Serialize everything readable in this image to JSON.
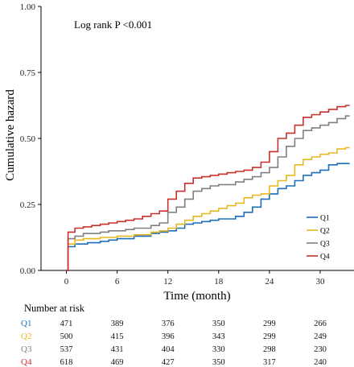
{
  "chart_data": {
    "type": "line",
    "step": true,
    "title": "",
    "xlabel": "Time (month)",
    "ylabel": "Cumulative hazard",
    "annotation": "Log rank P <0.001",
    "xlim": [
      -3,
      34
    ],
    "ylim": [
      0,
      1
    ],
    "xticks": [
      0,
      6,
      12,
      18,
      24,
      30
    ],
    "yticks": [
      "0.00",
      "0.25",
      "0.50",
      "0.75",
      "1.00"
    ],
    "ytick_values": [
      0,
      0.25,
      0.5,
      0.75,
      1.0
    ],
    "grid": false,
    "legend_position": "bottom-right",
    "series": [
      {
        "name": "Q1",
        "color": "#1f6fb8",
        "points": [
          [
            0,
            0
          ],
          [
            0.2,
            0.09
          ],
          [
            1,
            0.1
          ],
          [
            2.5,
            0.105
          ],
          [
            4,
            0.11
          ],
          [
            5,
            0.115
          ],
          [
            6,
            0.12
          ],
          [
            8,
            0.13
          ],
          [
            10,
            0.14
          ],
          [
            11,
            0.145
          ],
          [
            12,
            0.15
          ],
          [
            13,
            0.16
          ],
          [
            14,
            0.175
          ],
          [
            15,
            0.18
          ],
          [
            16,
            0.185
          ],
          [
            17,
            0.19
          ],
          [
            18,
            0.195
          ],
          [
            20,
            0.205
          ],
          [
            21,
            0.22
          ],
          [
            22,
            0.24
          ],
          [
            23,
            0.27
          ],
          [
            24,
            0.29
          ],
          [
            25,
            0.31
          ],
          [
            26,
            0.32
          ],
          [
            27,
            0.34
          ],
          [
            28,
            0.36
          ],
          [
            29,
            0.37
          ],
          [
            30,
            0.38
          ],
          [
            31,
            0.4
          ],
          [
            32,
            0.405
          ],
          [
            33.5,
            0.405
          ]
        ]
      },
      {
        "name": "Q2",
        "color": "#e8b820",
        "points": [
          [
            0,
            0
          ],
          [
            0.2,
            0.1
          ],
          [
            1,
            0.115
          ],
          [
            2,
            0.12
          ],
          [
            4,
            0.125
          ],
          [
            6,
            0.13
          ],
          [
            8,
            0.135
          ],
          [
            10,
            0.145
          ],
          [
            11,
            0.15
          ],
          [
            12,
            0.16
          ],
          [
            13,
            0.175
          ],
          [
            14,
            0.19
          ],
          [
            15,
            0.205
          ],
          [
            16,
            0.215
          ],
          [
            17,
            0.225
          ],
          [
            18,
            0.235
          ],
          [
            19,
            0.245
          ],
          [
            20,
            0.255
          ],
          [
            21,
            0.275
          ],
          [
            22,
            0.285
          ],
          [
            23,
            0.29
          ],
          [
            24,
            0.32
          ],
          [
            25,
            0.34
          ],
          [
            26,
            0.36
          ],
          [
            27,
            0.4
          ],
          [
            28,
            0.42
          ],
          [
            29,
            0.43
          ],
          [
            30,
            0.44
          ],
          [
            31,
            0.445
          ],
          [
            32,
            0.46
          ],
          [
            33,
            0.465
          ],
          [
            33.5,
            0.465
          ]
        ]
      },
      {
        "name": "Q3",
        "color": "#808080",
        "points": [
          [
            0,
            0
          ],
          [
            0.2,
            0.12
          ],
          [
            1,
            0.13
          ],
          [
            2,
            0.14
          ],
          [
            4,
            0.145
          ],
          [
            5,
            0.15
          ],
          [
            7,
            0.155
          ],
          [
            8,
            0.16
          ],
          [
            10,
            0.17
          ],
          [
            11,
            0.18
          ],
          [
            12,
            0.22
          ],
          [
            13,
            0.24
          ],
          [
            14,
            0.27
          ],
          [
            15,
            0.3
          ],
          [
            16,
            0.31
          ],
          [
            17,
            0.32
          ],
          [
            18,
            0.325
          ],
          [
            20,
            0.335
          ],
          [
            21,
            0.345
          ],
          [
            22,
            0.355
          ],
          [
            23,
            0.37
          ],
          [
            24,
            0.39
          ],
          [
            25,
            0.43
          ],
          [
            26,
            0.47
          ],
          [
            27,
            0.5
          ],
          [
            28,
            0.53
          ],
          [
            29,
            0.54
          ],
          [
            30,
            0.55
          ],
          [
            31,
            0.56
          ],
          [
            32,
            0.575
          ],
          [
            33,
            0.585
          ],
          [
            33.5,
            0.585
          ]
        ]
      },
      {
        "name": "Q4",
        "color": "#c8302c",
        "points": [
          [
            0,
            0
          ],
          [
            0.2,
            0.145
          ],
          [
            1,
            0.16
          ],
          [
            2,
            0.165
          ],
          [
            3,
            0.17
          ],
          [
            4,
            0.175
          ],
          [
            5,
            0.18
          ],
          [
            6,
            0.185
          ],
          [
            7,
            0.19
          ],
          [
            8,
            0.195
          ],
          [
            9,
            0.205
          ],
          [
            10,
            0.215
          ],
          [
            11,
            0.225
          ],
          [
            12,
            0.27
          ],
          [
            13,
            0.3
          ],
          [
            14,
            0.33
          ],
          [
            15,
            0.35
          ],
          [
            16,
            0.355
          ],
          [
            17,
            0.36
          ],
          [
            18,
            0.365
          ],
          [
            19,
            0.37
          ],
          [
            20,
            0.375
          ],
          [
            21,
            0.38
          ],
          [
            22,
            0.39
          ],
          [
            23,
            0.41
          ],
          [
            24,
            0.45
          ],
          [
            25,
            0.5
          ],
          [
            26,
            0.52
          ],
          [
            27,
            0.55
          ],
          [
            28,
            0.58
          ],
          [
            29,
            0.59
          ],
          [
            30,
            0.6
          ],
          [
            31,
            0.61
          ],
          [
            32,
            0.62
          ],
          [
            33,
            0.625
          ],
          [
            33.5,
            0.625
          ]
        ]
      }
    ],
    "risk_table": {
      "title": "Number at risk",
      "times": [
        0,
        6,
        12,
        18,
        24,
        30
      ],
      "rows": [
        {
          "group": "Q1",
          "color": "#1f6fb8",
          "counts": [
            "471",
            "389",
            "376",
            "350",
            "299",
            "266"
          ]
        },
        {
          "group": "Q2",
          "color": "#e8b820",
          "counts": [
            "500",
            "415",
            "396",
            "343",
            "299",
            "249"
          ]
        },
        {
          "group": "Q3",
          "color": "#808080",
          "counts": [
            "537",
            "431",
            "404",
            "330",
            "298",
            "230"
          ]
        },
        {
          "group": "Q4",
          "color": "#c8302c",
          "counts": [
            "618",
            "469",
            "427",
            "350",
            "317",
            "240"
          ]
        }
      ]
    }
  }
}
